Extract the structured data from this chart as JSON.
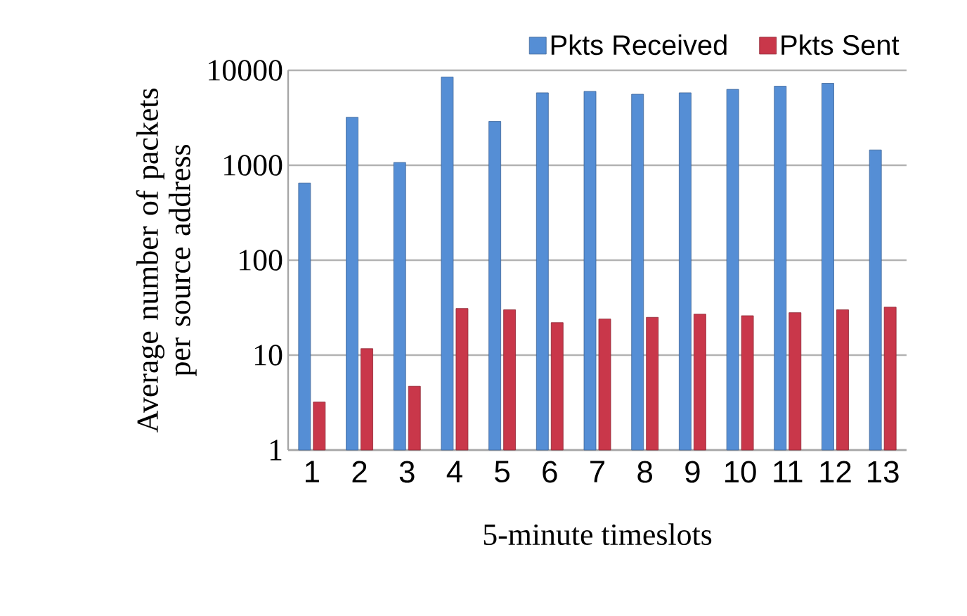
{
  "chart_data": {
    "type": "bar",
    "xlabel": "5-minute timeslots",
    "ylabel": "Average number of packets per source address",
    "categories": [
      "1",
      "2",
      "3",
      "4",
      "5",
      "6",
      "7",
      "8",
      "9",
      "10",
      "11",
      "12",
      "13"
    ],
    "series": [
      {
        "name": "Pkts Received",
        "color": "#558ed5",
        "values": [
          650,
          3200,
          1070,
          8500,
          2900,
          5800,
          6000,
          5600,
          5800,
          6300,
          6800,
          7300,
          1450
        ]
      },
      {
        "name": "Pkts Sent",
        "color": "#c9374a",
        "values": [
          3.2,
          11.7,
          4.7,
          31,
          30,
          22,
          24,
          25,
          27,
          26,
          28,
          30,
          32
        ]
      }
    ],
    "log": "y",
    "ylim": [
      1,
      10000
    ],
    "yticks": [
      1,
      10,
      100,
      1000,
      10000
    ],
    "grid": "y",
    "legend": "top right"
  }
}
